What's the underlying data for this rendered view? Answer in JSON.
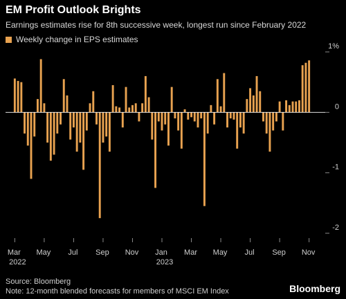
{
  "header": {
    "title": "EM Profit Outlook Brights",
    "subtitle": "Earnings estimates rise for 8th successive week, longest run since February 2022"
  },
  "legend": {
    "label": "Weekly change in EPS estimates",
    "color": "#e8a250"
  },
  "footer": {
    "source": "Source: Bloomberg",
    "note": "Note: 12-month blended forecasts for members of MSCI EM Index",
    "brand": "Bloomberg"
  },
  "chart_data": {
    "type": "bar",
    "bar_color": "#e8a250",
    "grid": false,
    "ylim": [
      -2,
      1
    ],
    "y_ticks": [
      {
        "value": 1,
        "label": "1%"
      },
      {
        "value": 0,
        "label": "0"
      },
      {
        "value": -1,
        "label": "-1"
      },
      {
        "value": -2,
        "label": "-2"
      }
    ],
    "x_ticks": [
      {
        "index": 0,
        "label": "Mar",
        "sub": "2022"
      },
      {
        "index": 9,
        "label": "May",
        "sub": ""
      },
      {
        "index": 18,
        "label": "Jul",
        "sub": ""
      },
      {
        "index": 27,
        "label": "Sep",
        "sub": ""
      },
      {
        "index": 36,
        "label": "Nov",
        "sub": ""
      },
      {
        "index": 45,
        "label": "Jan",
        "sub": "2023"
      },
      {
        "index": 54,
        "label": "Mar",
        "sub": ""
      },
      {
        "index": 63,
        "label": "May",
        "sub": ""
      },
      {
        "index": 72,
        "label": "Jul",
        "sub": ""
      },
      {
        "index": 81,
        "label": "Sep",
        "sub": ""
      },
      {
        "index": 90,
        "label": "Nov",
        "sub": ""
      }
    ],
    "values": [
      0.56,
      0.52,
      0.5,
      -0.35,
      -0.55,
      -1.1,
      -0.4,
      0.22,
      0.88,
      0.15,
      -0.5,
      -0.8,
      -0.7,
      -0.35,
      -0.2,
      0.55,
      0.28,
      -0.45,
      -0.25,
      -0.65,
      -0.5,
      -0.95,
      -0.3,
      0.15,
      0.35,
      -0.2,
      -1.75,
      -0.5,
      -0.4,
      -0.65,
      0.45,
      0.1,
      0.08,
      -0.25,
      0.42,
      0.08,
      0.12,
      0.15,
      -0.15,
      0.15,
      0.6,
      0.25,
      -0.45,
      -1.25,
      -0.15,
      -0.3,
      -0.2,
      -0.55,
      0.42,
      -0.1,
      -0.3,
      -0.6,
      0.05,
      -0.12,
      -0.08,
      -0.15,
      -0.25,
      -0.1,
      -1.55,
      -0.35,
      0.12,
      -0.2,
      0.55,
      0.1,
      0.65,
      -0.25,
      -0.1,
      -0.12,
      -0.6,
      -0.25,
      -0.35,
      0.22,
      0.4,
      0.28,
      0.6,
      0.35,
      -0.15,
      -0.35,
      -0.65,
      -0.3,
      -0.15,
      0.18,
      -0.3,
      0.2,
      0.12,
      0.18,
      0.18,
      0.2,
      0.78,
      0.82,
      0.86
    ]
  }
}
